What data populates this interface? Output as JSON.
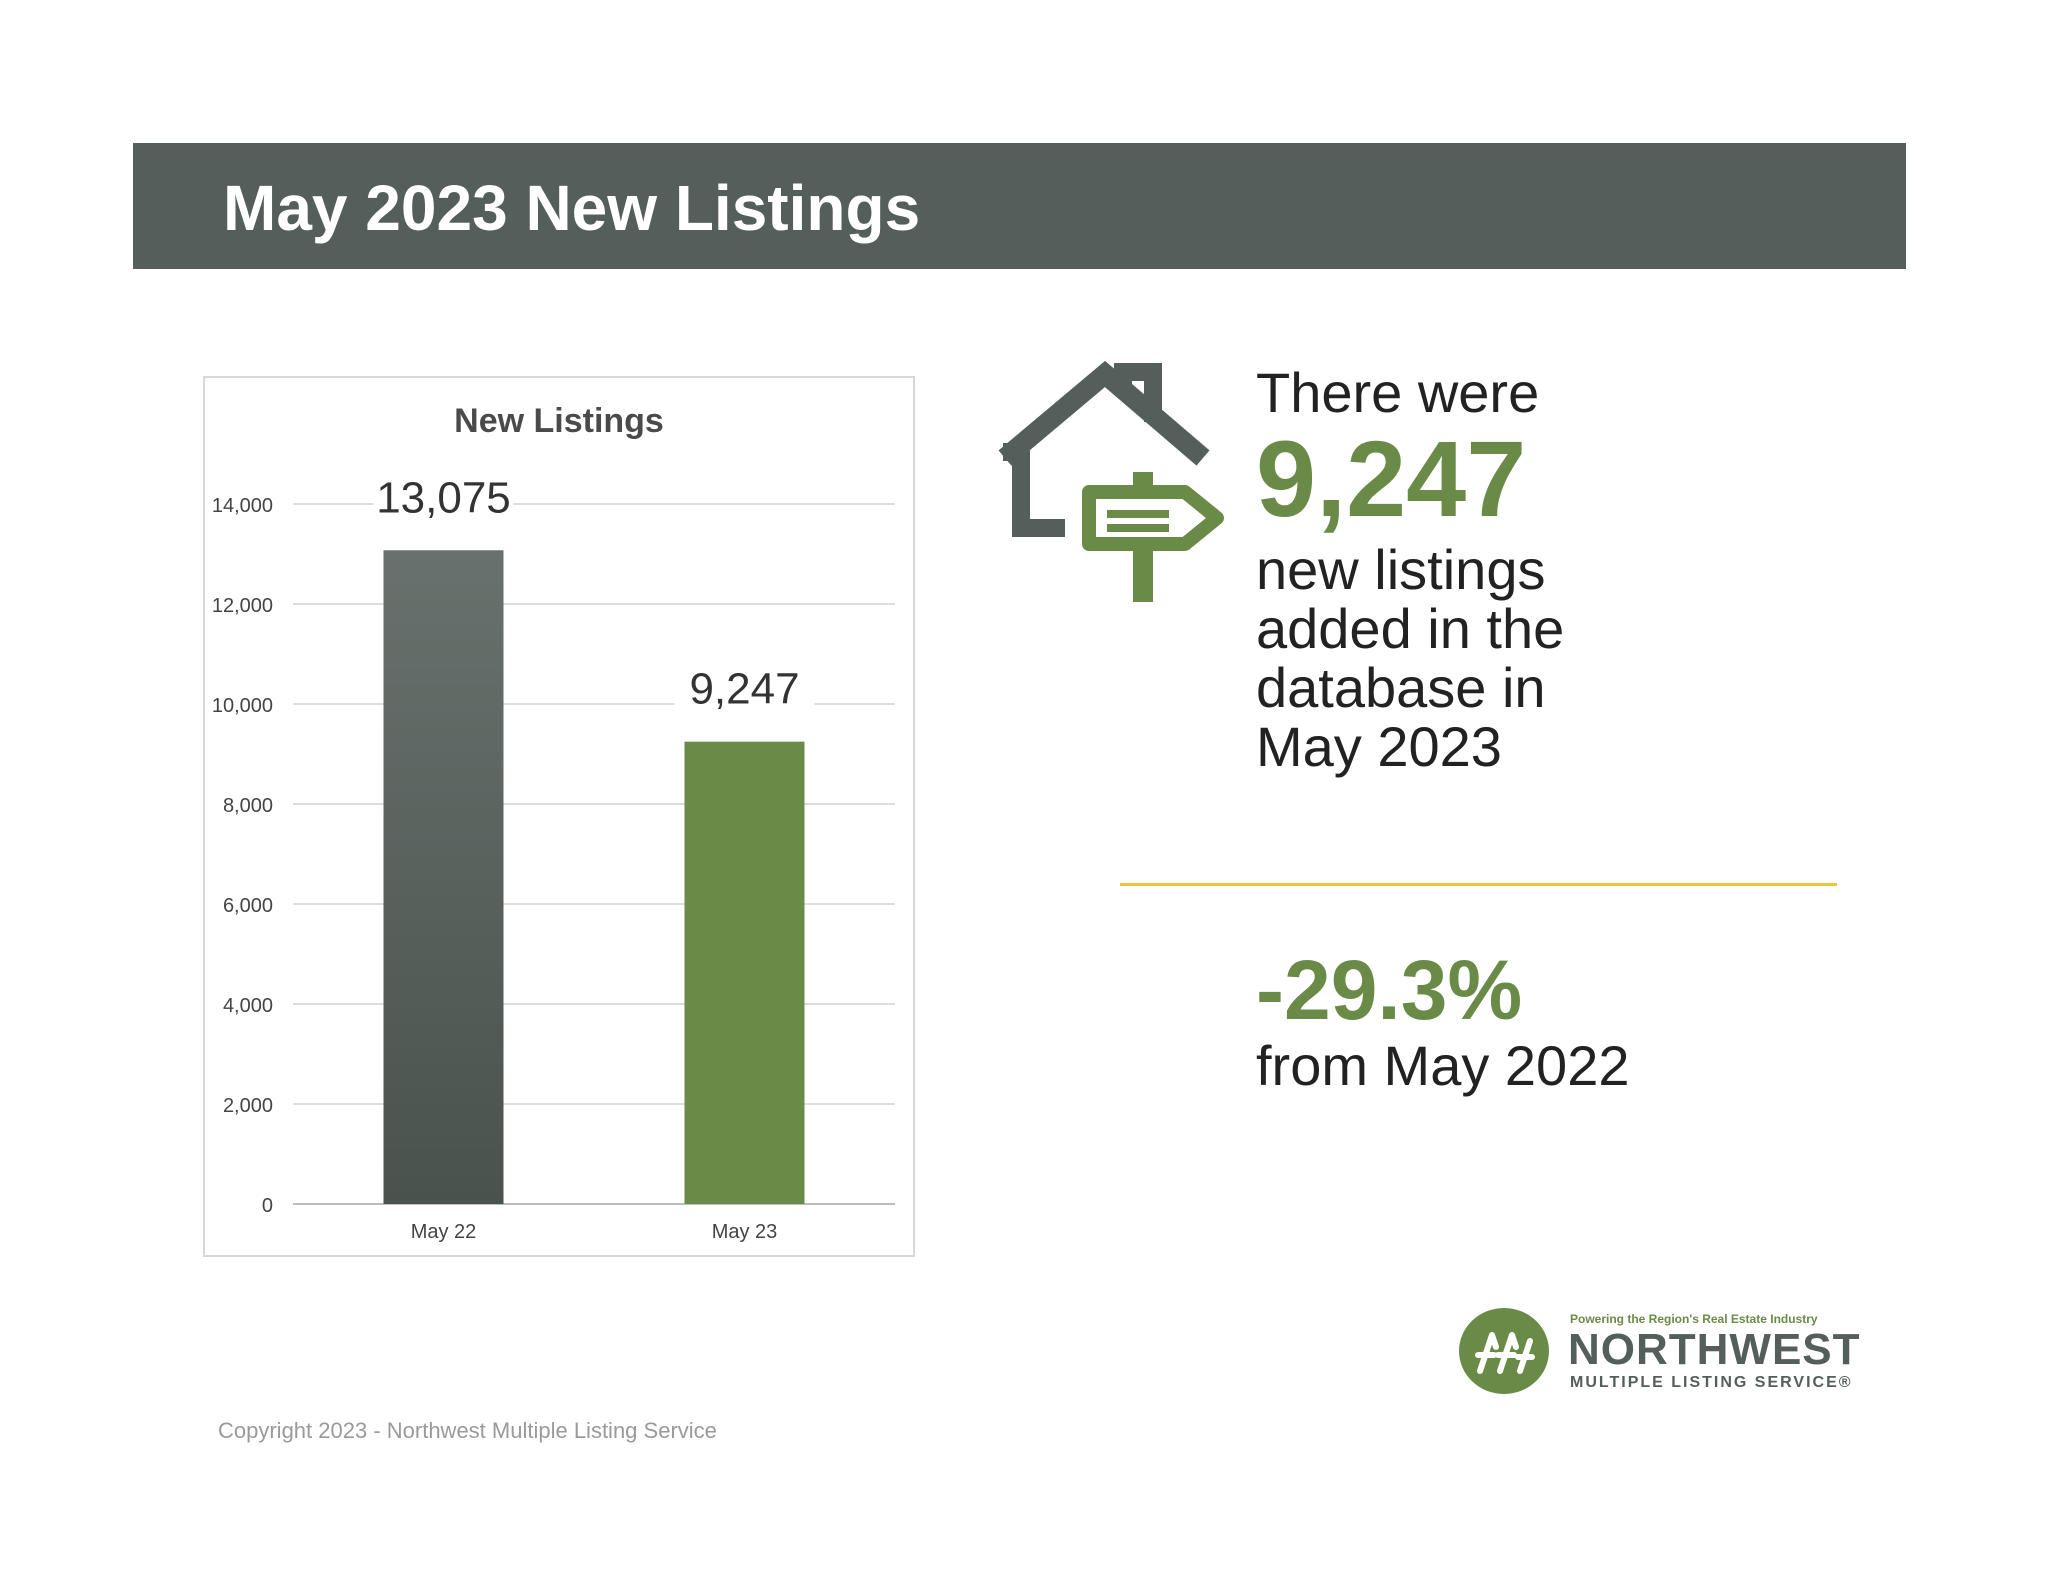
{
  "banner": {
    "title": "May 2023 New Listings"
  },
  "chart_data": {
    "type": "bar",
    "title": "New Listings",
    "categories": [
      "May 22",
      "May 23"
    ],
    "values": [
      13075,
      9247
    ],
    "value_labels": [
      "13,075",
      "9,247"
    ],
    "bar_colors": [
      "#5f6864",
      "#6a8b47"
    ],
    "ylim": [
      0,
      14000
    ],
    "yticks": [
      0,
      2000,
      4000,
      6000,
      8000,
      10000,
      12000,
      14000
    ],
    "ytick_labels": [
      "0",
      "2,000",
      "4,000",
      "6,000",
      "8,000",
      "10,000",
      "12,000",
      "14,000"
    ],
    "xlabel": "",
    "ylabel": "",
    "grid": true,
    "legend": "none"
  },
  "stat": {
    "lead": "There were",
    "value": "9,247",
    "lines": [
      "new listings",
      "added in the",
      "database in",
      "May 2023"
    ]
  },
  "change": {
    "value": "-29.3%",
    "caption": "from May 2022"
  },
  "logo": {
    "tagline": "Powering the Region's Real Estate Industry",
    "name": "NORTHWEST",
    "subtitle": "MULTIPLE LISTING SERVICE®"
  },
  "footer": {
    "copyright": "Copyright 2023 - Northwest Multiple Listing Service"
  },
  "colors": {
    "banner": "#545e5a",
    "accent_green": "#6a8b47",
    "divider": "#e8c53c"
  },
  "icons": {
    "house": "house-with-sign-icon",
    "logo": "nwmls-logo-icon"
  }
}
